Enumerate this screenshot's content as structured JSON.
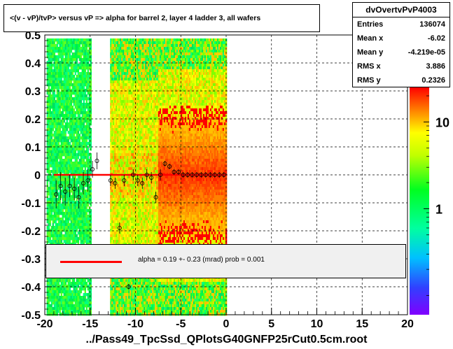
{
  "title": "<(v - vP)/tvP> versus   vP => alpha for barrel 2, layer 4 ladder 3, all wafers",
  "stats": {
    "name": "dvOvertvPvP4003",
    "rows": [
      {
        "label": "Entries",
        "value": "136074"
      },
      {
        "label": "Mean x",
        "value": "-6.02"
      },
      {
        "label": "Mean y",
        "value": "-4.219e-05"
      },
      {
        "label": "RMS x",
        "value": "3.886"
      },
      {
        "label": "RMS y",
        "value": "0.2326"
      }
    ]
  },
  "legend": {
    "text": "alpha =    0.19 +-  0.23 (mrad) prob = 0.001",
    "line_color": "#ff0000"
  },
  "xlabel": "../Pass49_TpcSsd_QPlotsG40GNFP25rCut0.5cm.root",
  "colors": {
    "frame": "#000000",
    "fit": "#ff0000",
    "low": "#00ff40",
    "mid": "#ffff00",
    "high": "#ff2000"
  },
  "chart_data": {
    "type": "heatmap",
    "xlim": [
      -20,
      20
    ],
    "ylim": [
      -0.5,
      0.5
    ],
    "x_ticks": [
      -20,
      -15,
      -10,
      -5,
      0,
      5,
      10,
      15,
      20
    ],
    "x_tick_labels": [
      "-20",
      "-15",
      "-10",
      "-5",
      "0",
      "5",
      "10",
      "15",
      "20"
    ],
    "y_ticks": [
      -0.5,
      -0.4,
      -0.3,
      -0.2,
      -0.1,
      0,
      0.1,
      0.2,
      0.3,
      0.4,
      0.5
    ],
    "y_tick_labels": [
      "-0.5",
      "-0.4",
      "-0.3",
      "-0.2",
      "-0.1",
      "0",
      "0.1",
      "0.2",
      "0.3",
      "0.4",
      "0.5"
    ],
    "grid": true,
    "colorbar": {
      "ticks": [
        1,
        10
      ],
      "tick_labels": [
        "1",
        "10"
      ],
      "log": true,
      "range": [
        0.06,
        25
      ]
    },
    "bands": [
      {
        "x0": -19.8,
        "x1": -15.0,
        "level": "low"
      },
      {
        "x0": -12.8,
        "x1": -7.5,
        "level": "mid"
      },
      {
        "x0": -7.5,
        "x1": 0.0,
        "level": "high"
      }
    ],
    "profile_points": [
      {
        "x": -18.75,
        "y": -0.07,
        "err": 0.05
      },
      {
        "x": -18.25,
        "y": -0.04,
        "err": 0.05
      },
      {
        "x": -17.75,
        "y": -0.06,
        "err": 0.05
      },
      {
        "x": -17.25,
        "y": -0.04,
        "err": 0.04
      },
      {
        "x": -16.75,
        "y": -0.05,
        "err": 0.04
      },
      {
        "x": -16.25,
        "y": -0.08,
        "err": 0.04
      },
      {
        "x": -15.75,
        "y": -0.03,
        "err": 0.04
      },
      {
        "x": -15.25,
        "y": -0.02,
        "err": 0.04
      },
      {
        "x": -14.75,
        "y": 0.02,
        "err": 0.03
      },
      {
        "x": -14.25,
        "y": 0.05,
        "err": 0.03
      },
      {
        "x": -12.75,
        "y": -0.02,
        "err": 0.02
      },
      {
        "x": -12.25,
        "y": -0.03,
        "err": 0.02
      },
      {
        "x": -11.75,
        "y": -0.19,
        "err": 0.02
      },
      {
        "x": -11.25,
        "y": -0.02,
        "err": 0.02
      },
      {
        "x": -10.75,
        "y": -0.4,
        "err": 0.01
      },
      {
        "x": -10.25,
        "y": 0.0,
        "err": 0.02
      },
      {
        "x": -9.75,
        "y": -0.02,
        "err": 0.02
      },
      {
        "x": -9.25,
        "y": -0.03,
        "err": 0.02
      },
      {
        "x": -8.75,
        "y": 0.0,
        "err": 0.02
      },
      {
        "x": -8.25,
        "y": -0.01,
        "err": 0.02
      },
      {
        "x": -7.75,
        "y": -0.08,
        "err": 0.02
      },
      {
        "x": -7.25,
        "y": 0.0,
        "err": 0.02
      },
      {
        "x": -6.75,
        "y": 0.04,
        "err": 0.01
      },
      {
        "x": -6.25,
        "y": 0.03,
        "err": 0.01
      },
      {
        "x": -5.75,
        "y": 0.01,
        "err": 0.01
      },
      {
        "x": -5.25,
        "y": 0.01,
        "err": 0.01
      },
      {
        "x": -4.75,
        "y": 0.0,
        "err": 0.01
      },
      {
        "x": -4.25,
        "y": 0.0,
        "err": 0.01
      },
      {
        "x": -3.75,
        "y": 0.0,
        "err": 0.01
      },
      {
        "x": -3.25,
        "y": 0.0,
        "err": 0.01
      },
      {
        "x": -2.75,
        "y": 0.0,
        "err": 0.01
      },
      {
        "x": -2.25,
        "y": 0.0,
        "err": 0.01
      },
      {
        "x": -1.75,
        "y": 0.0,
        "err": 0.01
      },
      {
        "x": -1.25,
        "y": 0.0,
        "err": 0.01
      },
      {
        "x": -0.75,
        "y": 0.0,
        "err": 0.01
      },
      {
        "x": -0.25,
        "y": 0.0,
        "err": 0.01
      }
    ],
    "fit_line": {
      "x": [
        -19.0,
        0.0
      ],
      "y": [
        0.0,
        0.0
      ]
    }
  }
}
